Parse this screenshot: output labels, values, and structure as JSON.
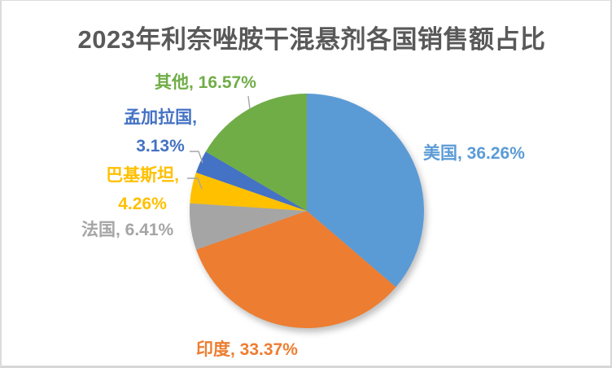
{
  "chart_data": {
    "type": "pie",
    "title": "2023年利奈唑胺干混悬剂各国销售额占比",
    "start_angle_deg": 0,
    "direction": "clockwise",
    "legend_position": "none",
    "labels_style": "outside, colored to match slice",
    "slices": [
      {
        "id": "usa",
        "name": "美国",
        "value": 36.26,
        "label": "美国, 36.26%",
        "color": "#5B9BD5"
      },
      {
        "id": "india",
        "name": "印度",
        "value": 33.37,
        "label": "印度, 33.37%",
        "color": "#ED7D31"
      },
      {
        "id": "france",
        "name": "法国",
        "value": 6.41,
        "label": "法国, 6.41%",
        "color": "#A5A5A5"
      },
      {
        "id": "pakistan",
        "name": "巴基斯坦",
        "value": 4.26,
        "label_line1": "巴基斯坦,",
        "label_line2": "4.26%",
        "color": "#FFC000"
      },
      {
        "id": "bangladesh",
        "name": "孟加拉国",
        "value": 3.13,
        "label_line1": "孟加拉国,",
        "label_line2": "3.13%",
        "color": "#4472C4"
      },
      {
        "id": "others",
        "name": "其他",
        "value": 16.57,
        "label": "其他, 16.57%",
        "color": "#70AD47"
      }
    ],
    "title_color": "#595959",
    "leader_line_color": "#A6A6A6"
  }
}
